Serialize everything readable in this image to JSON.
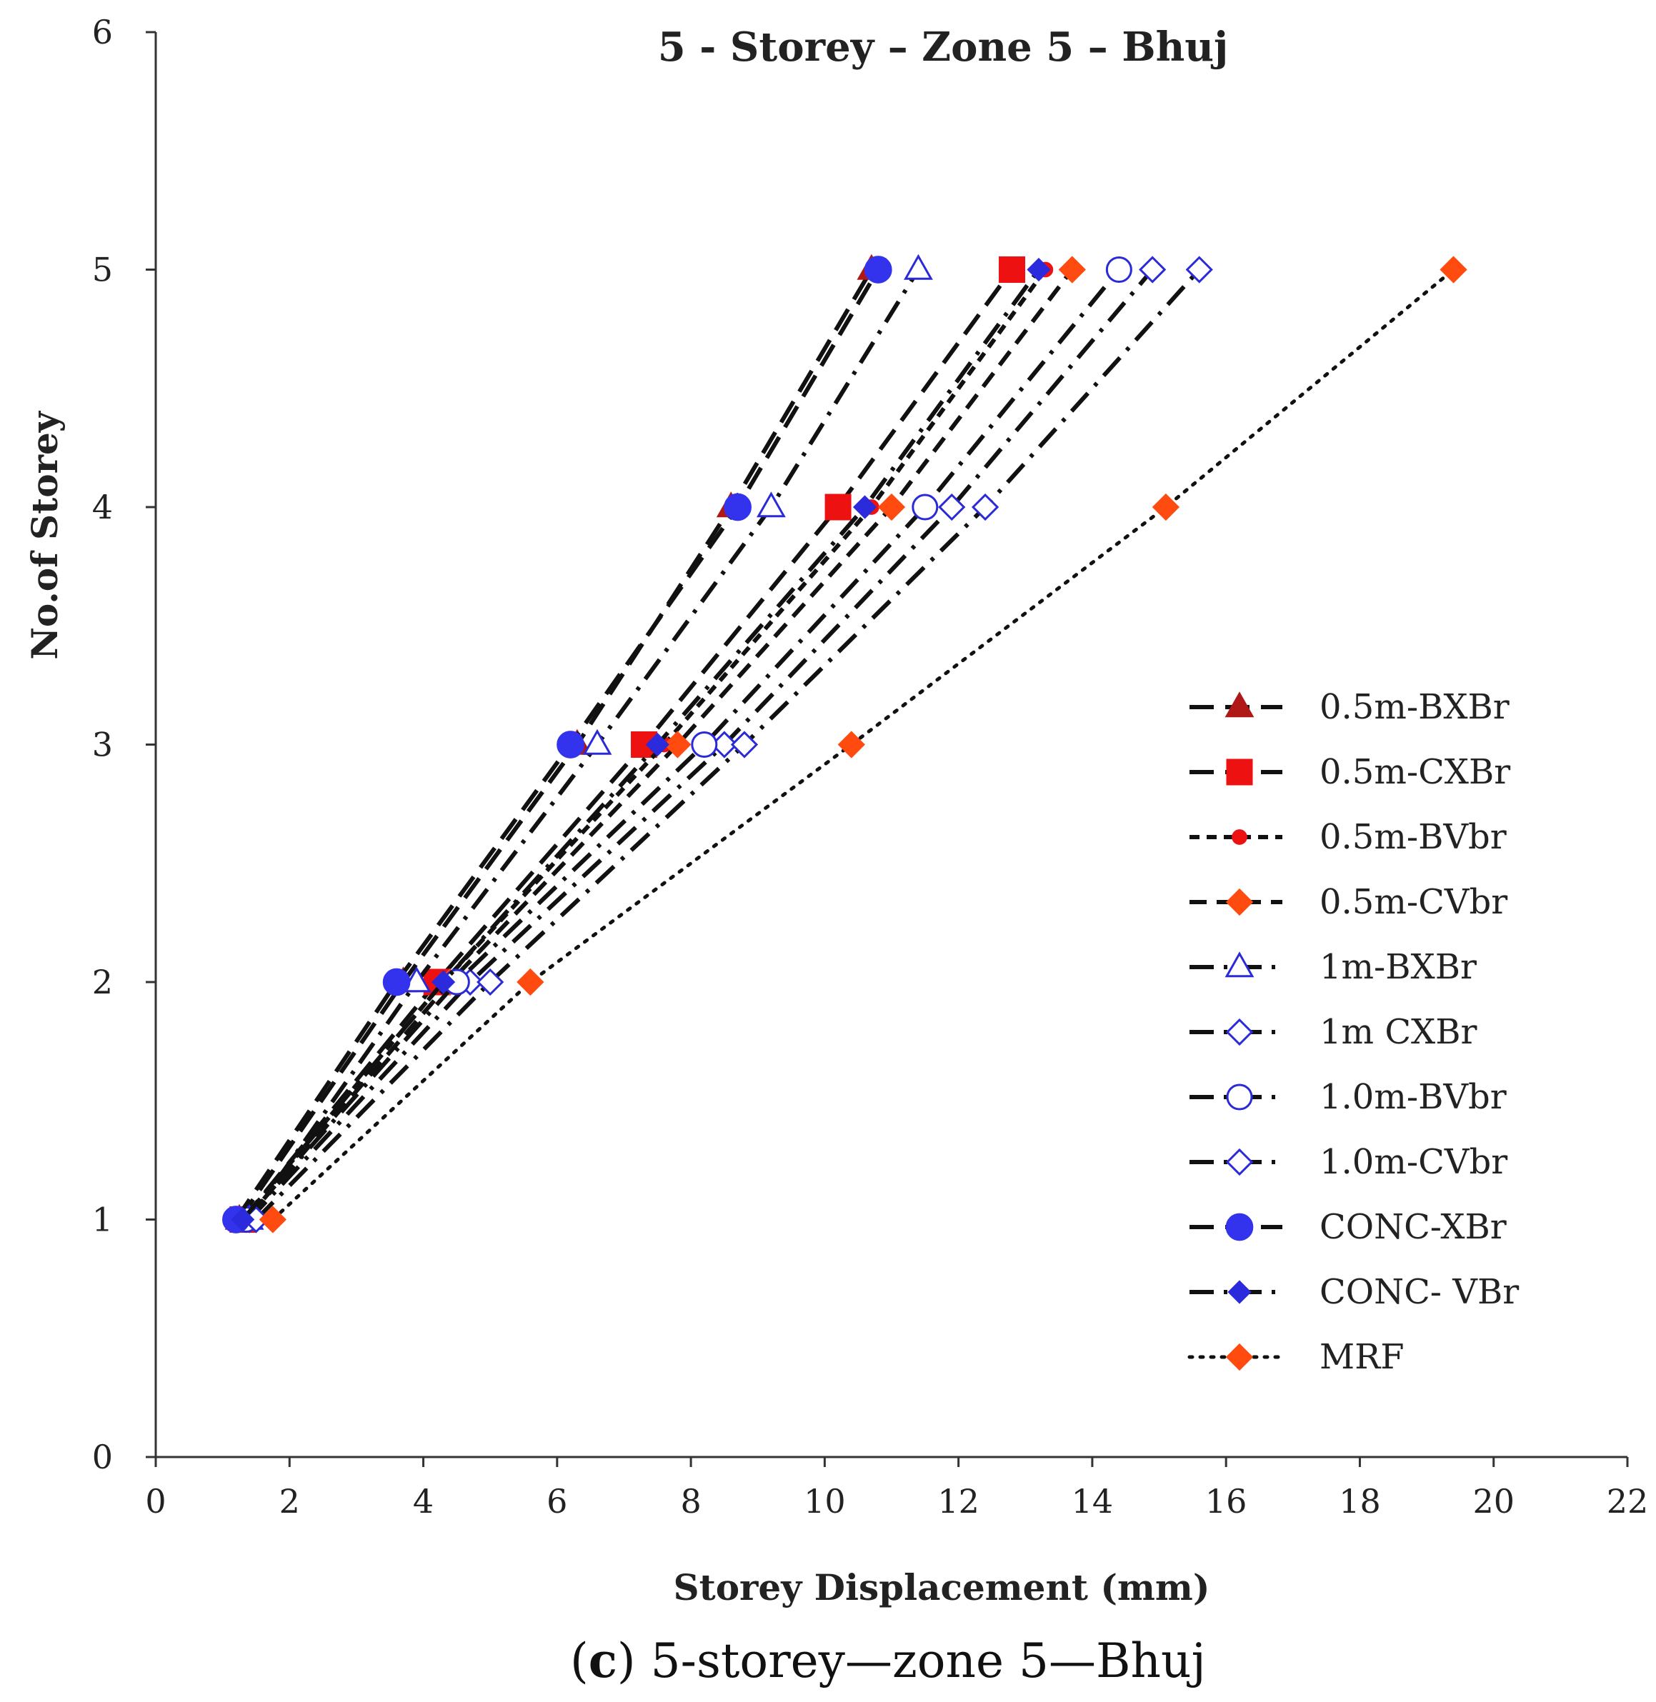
{
  "chart_data": {
    "type": "line",
    "title": "5 - Storey – Zone 5 – Bhuj",
    "xlabel": "Storey Displacement (mm)",
    "ylabel": "No.of Storey",
    "xlim": [
      0,
      22
    ],
    "ylim": [
      0,
      6
    ],
    "xticks": [
      "0",
      "2",
      "4",
      "6",
      "8",
      "10",
      "12",
      "14",
      "16",
      "18",
      "20",
      "22"
    ],
    "yticks": [
      "0",
      "1",
      "2",
      "3",
      "4",
      "5",
      "6"
    ],
    "legend_position": "right",
    "series": [
      {
        "name": "0.5m-BXBr",
        "marker": "triangle",
        "marker_fill": "#b01818",
        "marker_stroke": "#b01818",
        "dash": "long",
        "points": [
          [
            1.25,
            1
          ],
          [
            3.7,
            2
          ],
          [
            6.3,
            3
          ],
          [
            8.6,
            4
          ],
          [
            10.7,
            5
          ]
        ]
      },
      {
        "name": "0.5m-CXBr",
        "marker": "square",
        "marker_fill": "#ee1111",
        "marker_stroke": "#ee1111",
        "dash": "long",
        "points": [
          [
            1.3,
            1
          ],
          [
            4.2,
            2
          ],
          [
            7.3,
            3
          ],
          [
            10.2,
            4
          ],
          [
            12.8,
            5
          ]
        ]
      },
      {
        "name": "0.5m-BVbr",
        "marker": "circle-small",
        "marker_fill": "#ee1111",
        "marker_stroke": "#ee1111",
        "dash": "short",
        "points": [
          [
            1.3,
            1
          ],
          [
            4.3,
            2
          ],
          [
            7.6,
            3
          ],
          [
            10.7,
            4
          ],
          [
            13.3,
            5
          ]
        ]
      },
      {
        "name": "0.5m-CVbr",
        "marker": "diamond",
        "marker_fill": "#ff4a10",
        "marker_stroke": "#ff4a10",
        "dash": "medium",
        "points": [
          [
            1.35,
            1
          ],
          [
            4.4,
            2
          ],
          [
            7.8,
            3
          ],
          [
            11.0,
            4
          ],
          [
            13.7,
            5
          ]
        ]
      },
      {
        "name": "1m-BXBr",
        "marker": "triangle-open",
        "marker_fill": "#ffffff",
        "marker_stroke": "#2a2ad8",
        "dash": "longdot",
        "points": [
          [
            1.4,
            1
          ],
          [
            3.9,
            2
          ],
          [
            6.6,
            3
          ],
          [
            9.2,
            4
          ],
          [
            11.4,
            5
          ]
        ]
      },
      {
        "name": "1m CXBr",
        "marker": "diamond-open",
        "marker_fill": "#ffffff",
        "marker_stroke": "#2a2ad8",
        "dash": "longdot",
        "points": [
          [
            1.4,
            1
          ],
          [
            4.7,
            2
          ],
          [
            8.5,
            3
          ],
          [
            11.9,
            4
          ],
          [
            14.9,
            5
          ]
        ]
      },
      {
        "name": "1.0m-BVbr",
        "marker": "circle-open",
        "marker_fill": "#ffffff",
        "marker_stroke": "#2a2ad8",
        "dash": "longdot",
        "points": [
          [
            1.35,
            1
          ],
          [
            4.5,
            2
          ],
          [
            8.2,
            3
          ],
          [
            11.5,
            4
          ],
          [
            14.4,
            5
          ]
        ]
      },
      {
        "name": "1.0m-CVbr",
        "marker": "diamond-open",
        "marker_fill": "#ffffff",
        "marker_stroke": "#2a2ad8",
        "dash": "longdot",
        "points": [
          [
            1.5,
            1
          ],
          [
            5.0,
            2
          ],
          [
            8.8,
            3
          ],
          [
            12.4,
            4
          ],
          [
            15.6,
            5
          ]
        ]
      },
      {
        "name": "CONC-XBr",
        "marker": "circle",
        "marker_fill": "#3333ee",
        "marker_stroke": "#3333ee",
        "dash": "long",
        "points": [
          [
            1.2,
            1
          ],
          [
            3.6,
            2
          ],
          [
            6.2,
            3
          ],
          [
            8.7,
            4
          ],
          [
            10.8,
            5
          ]
        ]
      },
      {
        "name": "CONC- VBr",
        "marker": "diamond-small",
        "marker_fill": "#2b2bdd",
        "marker_stroke": "#2b2bdd",
        "dash": "longdot",
        "points": [
          [
            1.3,
            1
          ],
          [
            4.3,
            2
          ],
          [
            7.5,
            3
          ],
          [
            10.6,
            4
          ],
          [
            13.2,
            5
          ]
        ]
      },
      {
        "name": "MRF",
        "marker": "diamond",
        "marker_fill": "#ff4a10",
        "marker_stroke": "#ff4a10",
        "dash": "dotted",
        "points": [
          [
            1.75,
            1
          ],
          [
            5.6,
            2
          ],
          [
            10.4,
            3
          ],
          [
            15.1,
            4
          ],
          [
            19.4,
            5
          ]
        ]
      }
    ]
  },
  "caption": {
    "letter": "c",
    "text": "5-storey—zone 5—Bhuj"
  }
}
